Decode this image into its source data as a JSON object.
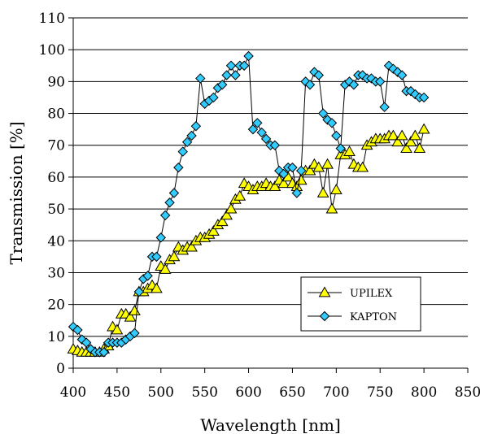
{
  "chart_data": {
    "type": "line",
    "title": "",
    "xlabel": "Wavelength [nm]",
    "ylabel": "Transmission [%]",
    "xlim": [
      400,
      850
    ],
    "ylim": [
      0,
      110
    ],
    "xticks": [
      400,
      450,
      500,
      550,
      600,
      650,
      700,
      750,
      800,
      850
    ],
    "yticks": [
      0,
      10,
      20,
      30,
      40,
      50,
      60,
      70,
      80,
      90,
      100,
      110
    ],
    "grid": "horizontal",
    "legend_position": "bottom-right",
    "series": [
      {
        "name": "UPILEX",
        "marker": "triangle",
        "color": "#ffff00",
        "x": [
          400,
          405,
          410,
          415,
          420,
          425,
          430,
          435,
          440,
          445,
          450,
          455,
          460,
          465,
          470,
          475,
          480,
          485,
          490,
          495,
          500,
          505,
          510,
          515,
          520,
          525,
          530,
          535,
          540,
          545,
          550,
          555,
          560,
          565,
          570,
          575,
          580,
          585,
          590,
          595,
          600,
          605,
          610,
          615,
          620,
          625,
          630,
          635,
          640,
          645,
          650,
          655,
          660,
          665,
          670,
          675,
          680,
          685,
          690,
          695,
          700,
          705,
          710,
          715,
          720,
          725,
          730,
          735,
          740,
          745,
          750,
          755,
          760,
          765,
          770,
          775,
          780,
          785,
          790,
          795,
          800
        ],
        "y": [
          6,
          5.5,
          5,
          5,
          5,
          5,
          5,
          6,
          7,
          13,
          12,
          17,
          17,
          16,
          18,
          24,
          24,
          25,
          26,
          25,
          32,
          31,
          34,
          35,
          38,
          37,
          38,
          38,
          40,
          41,
          41,
          42,
          43,
          45,
          46,
          48,
          50,
          53,
          54,
          58,
          57,
          56,
          57,
          57,
          58,
          57,
          57,
          59,
          58,
          60,
          58,
          57,
          59,
          62,
          62,
          64,
          63,
          55,
          64,
          50,
          56,
          67,
          67,
          68,
          64,
          63,
          63,
          70,
          71,
          72,
          72,
          72,
          73,
          73,
          71,
          73,
          69,
          71,
          73,
          69,
          75
        ]
      },
      {
        "name": "KAPTON",
        "marker": "diamond",
        "color": "#33ccff",
        "x": [
          400,
          405,
          410,
          415,
          420,
          425,
          430,
          435,
          440,
          445,
          450,
          455,
          460,
          465,
          470,
          475,
          480,
          485,
          490,
          495,
          500,
          505,
          510,
          515,
          520,
          525,
          530,
          535,
          540,
          545,
          550,
          555,
          560,
          565,
          570,
          575,
          580,
          585,
          590,
          595,
          600,
          605,
          610,
          615,
          620,
          625,
          630,
          635,
          640,
          645,
          650,
          655,
          660,
          665,
          670,
          675,
          680,
          685,
          690,
          695,
          700,
          705,
          710,
          715,
          720,
          725,
          730,
          735,
          740,
          745,
          750,
          755,
          760,
          765,
          770,
          775,
          780,
          785,
          790,
          795,
          800
        ],
        "y": [
          13,
          12,
          9,
          8,
          6,
          5,
          5,
          5,
          8,
          8,
          8,
          8,
          9,
          10,
          11,
          24,
          28,
          29,
          35,
          35,
          41,
          48,
          52,
          55,
          63,
          68,
          71,
          73,
          76,
          91,
          83,
          84,
          85,
          88,
          89,
          92,
          95,
          92,
          95,
          95,
          98,
          75,
          77,
          74,
          72,
          70,
          70,
          62,
          61,
          63,
          63,
          55,
          62,
          90,
          89,
          93,
          92,
          80,
          78,
          77,
          73,
          69,
          89,
          90,
          89,
          92,
          92,
          91,
          91,
          90,
          90,
          82,
          95,
          94,
          93,
          92,
          87,
          87,
          86,
          85,
          85
        ]
      }
    ]
  }
}
